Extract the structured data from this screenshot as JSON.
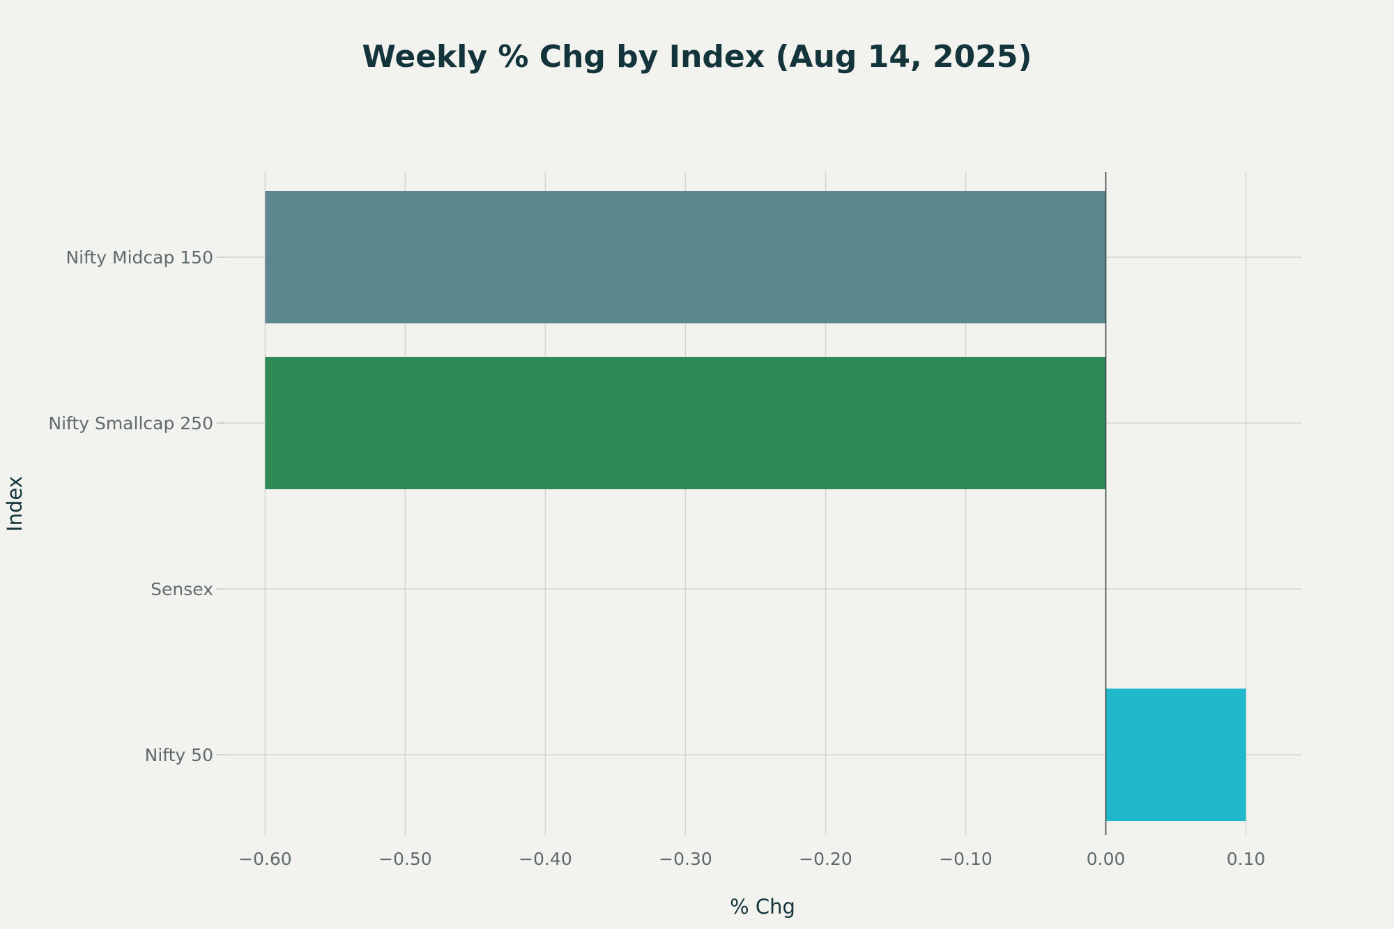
{
  "chart_data": {
    "type": "bar",
    "orientation": "horizontal",
    "title": "Weekly % Chg by Index (Aug 14, 2025)",
    "xlabel": "% Chg",
    "ylabel": "Index",
    "categories": [
      "Nifty Midcap 150",
      "Nifty Smallcap 250",
      "Sensex",
      "Nifty 50"
    ],
    "values": [
      -0.6,
      -0.6,
      0.0,
      0.1
    ],
    "colors": [
      "#5d878f",
      "#2e8b57",
      "#d2ba4c",
      "#1fb8cd"
    ],
    "xlim": [
      -0.635,
      0.14
    ],
    "xticks": [
      -0.6,
      -0.5,
      -0.4,
      -0.3,
      -0.2,
      -0.1,
      0.0,
      0.1
    ],
    "xtick_labels": [
      "−0.60",
      "−0.50",
      "−0.40",
      "−0.30",
      "−0.20",
      "−0.10",
      "0.00",
      "0.10"
    ],
    "grid": true,
    "legend": "none"
  }
}
